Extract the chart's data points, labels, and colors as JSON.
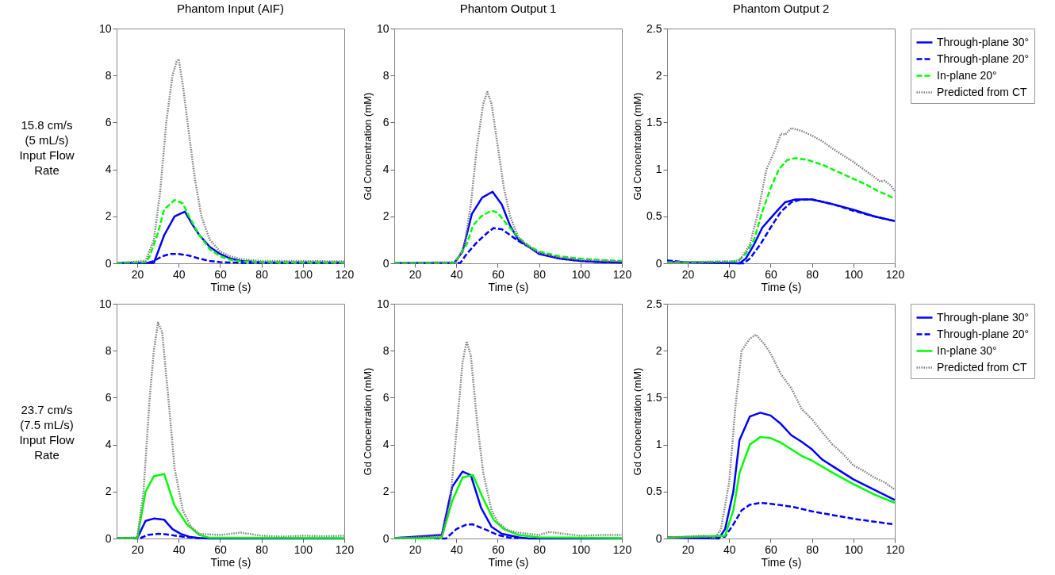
{
  "chart_data": [
    {
      "type": "line",
      "title": "Phantom Input (AIF)",
      "xlabel": "Time (s)",
      "annotations": [
        "15.8 cm/s (5 mL/s) Input Flow Rate"
      ],
      "xlim": [
        10,
        120
      ],
      "xticks": [
        20,
        40,
        60,
        80,
        100,
        120
      ],
      "ylim": [
        0,
        10
      ],
      "yticks": [
        0,
        2,
        4,
        6,
        8,
        10
      ],
      "series": [
        {
          "color": "#0000ff",
          "line_style": "solid",
          "x": [
            10,
            20,
            28,
            33,
            38,
            43,
            47,
            50,
            55,
            60,
            65,
            70,
            80,
            120
          ],
          "values": [
            0.02,
            0.02,
            0.02,
            1.2,
            2.0,
            2.2,
            1.6,
            1.2,
            0.7,
            0.4,
            0.2,
            0.1,
            0.04,
            0.03
          ]
        },
        {
          "color": "#0000ff",
          "line_style": "dashed",
          "x": [
            10,
            25,
            28,
            32,
            36,
            40,
            45,
            50,
            55,
            60,
            70,
            120
          ],
          "values": [
            0.02,
            0.02,
            0.1,
            0.3,
            0.4,
            0.4,
            0.33,
            0.2,
            0.1,
            0.05,
            0.02,
            0.02
          ]
        },
        {
          "color": "#00ff00",
          "line_style": "dashed",
          "x": [
            10,
            24,
            26,
            30,
            33,
            38,
            42,
            45,
            50,
            55,
            60,
            65,
            70,
            80,
            120
          ],
          "values": [
            0.02,
            0.05,
            0.3,
            1.3,
            2.3,
            2.7,
            2.55,
            2.0,
            1.2,
            0.6,
            0.3,
            0.15,
            0.08,
            0.05,
            0.03
          ]
        },
        {
          "color": "#808080",
          "line_style": "dotted",
          "x": [
            10,
            24,
            28,
            31,
            34,
            37,
            39,
            40,
            42,
            45,
            48,
            51,
            55,
            60,
            65,
            70,
            80,
            90,
            100,
            120
          ],
          "values": [
            0.02,
            0.1,
            1,
            3,
            6,
            8,
            8.6,
            8.7,
            7.6,
            5.5,
            3.5,
            2.0,
            1.0,
            0.5,
            0.3,
            0.18,
            0.1,
            0.1,
            0.1,
            0.08
          ]
        }
      ]
    },
    {
      "type": "line",
      "title": "Phantom Output 1",
      "xlabel": "Time (s)",
      "ylabel": "Gd Concentration (mM)",
      "xlim": [
        10,
        120
      ],
      "xticks": [
        20,
        40,
        60,
        80,
        100,
        120
      ],
      "ylim": [
        0,
        10
      ],
      "yticks": [
        0,
        2,
        4,
        6,
        8,
        10
      ],
      "series": [
        {
          "color": "#0000ff",
          "line_style": "solid",
          "x": [
            10,
            39,
            43,
            47.5,
            52.5,
            57.5,
            62,
            66,
            70,
            75,
            80,
            90,
            100,
            110,
            120
          ],
          "values": [
            0.02,
            0.02,
            0.5,
            2.1,
            2.8,
            3.05,
            2.5,
            1.6,
            1.0,
            0.7,
            0.4,
            0.2,
            0.1,
            0.05,
            0.03
          ]
        },
        {
          "color": "#0000ff",
          "line_style": "dashed",
          "x": [
            10,
            42,
            45,
            50,
            55,
            58,
            62,
            66,
            70,
            75,
            80,
            90,
            100,
            110,
            120
          ],
          "values": [
            0.02,
            0.02,
            0.4,
            0.9,
            1.3,
            1.5,
            1.45,
            1.2,
            0.95,
            0.7,
            0.45,
            0.2,
            0.1,
            0.05,
            0.03
          ]
        },
        {
          "color": "#00ff00",
          "line_style": "dashed",
          "x": [
            10,
            39,
            42,
            45,
            48,
            52,
            57,
            60,
            65,
            70,
            75,
            80,
            90,
            100,
            110,
            120
          ],
          "values": [
            0.02,
            0.02,
            0.4,
            0.8,
            1.6,
            2.0,
            2.25,
            2.15,
            1.6,
            1.1,
            0.75,
            0.5,
            0.3,
            0.2,
            0.14,
            0.1
          ]
        },
        {
          "color": "#808080",
          "line_style": "dotted",
          "x": [
            10,
            40,
            44,
            47,
            50,
            53,
            55,
            57,
            60,
            63,
            66,
            70,
            75,
            80,
            90,
            100,
            110,
            120
          ],
          "values": [
            0.02,
            0.05,
            0.8,
            2.5,
            5.0,
            6.8,
            7.3,
            6.8,
            5.0,
            3.2,
            2.0,
            1.1,
            0.7,
            0.45,
            0.25,
            0.15,
            0.12,
            0.08
          ]
        }
      ]
    },
    {
      "type": "line",
      "title": "Phantom Output 2",
      "xlabel": "Time (s)",
      "ylabel": "Gd Concentration (mM)",
      "legend": "right",
      "xlim": [
        10,
        120
      ],
      "xticks": [
        20,
        40,
        60,
        80,
        100,
        120
      ],
      "ylim": [
        0,
        2.5
      ],
      "yticks": [
        0,
        0.5,
        1,
        1.5,
        2,
        2.5
      ],
      "series": [
        {
          "name": "Through-plane 30°",
          "color": "#0000ff",
          "line_style": "solid",
          "x": [
            10,
            20,
            45,
            48,
            52,
            56,
            60,
            64,
            67,
            72,
            80,
            90,
            100,
            110,
            120
          ],
          "values": [
            0.02,
            0.01,
            0,
            0.05,
            0.2,
            0.38,
            0.48,
            0.58,
            0.65,
            0.68,
            0.68,
            0.63,
            0.57,
            0.5,
            0.45
          ]
        },
        {
          "name": "Through-plane 20°",
          "color": "#0000ff",
          "line_style": "dashed",
          "x": [
            10,
            20,
            47,
            50,
            55,
            60,
            65,
            70,
            75,
            80,
            90,
            100,
            110,
            120
          ],
          "values": [
            0.03,
            0.01,
            0,
            0.05,
            0.2,
            0.38,
            0.55,
            0.65,
            0.68,
            0.68,
            0.63,
            0.56,
            0.5,
            0.45
          ]
        },
        {
          "name": "In-plane 20°",
          "color": "#00ff00",
          "line_style": "dashed",
          "x": [
            10,
            44,
            48,
            52,
            56,
            60,
            64,
            68,
            72,
            78,
            85,
            95,
            105,
            112,
            120
          ],
          "values": [
            0.01,
            0.02,
            0.1,
            0.25,
            0.55,
            0.8,
            1.0,
            1.1,
            1.12,
            1.1,
            1.05,
            0.95,
            0.85,
            0.77,
            0.69
          ]
        },
        {
          "name": "Predicted from CT",
          "color": "#808080",
          "line_style": "dotted",
          "x": [
            10,
            40,
            45,
            50,
            54,
            58,
            62,
            65,
            67,
            70,
            75,
            80,
            85,
            90,
            95,
            100,
            105,
            110,
            113,
            115,
            118,
            120
          ],
          "values": [
            0.01,
            0.02,
            0.03,
            0.2,
            0.55,
            1.0,
            1.2,
            1.38,
            1.37,
            1.44,
            1.41,
            1.36,
            1.3,
            1.22,
            1.15,
            1.08,
            1.0,
            0.92,
            0.87,
            0.88,
            0.83,
            0.77
          ]
        }
      ]
    },
    {
      "type": "line",
      "xlabel": "Time (s)",
      "annotations": [
        "23.7 cm/s (7.5 mL/s) Input Flow Rate"
      ],
      "xlim": [
        10,
        120
      ],
      "xticks": [
        20,
        40,
        60,
        80,
        100,
        120
      ],
      "ylim": [
        0,
        10
      ],
      "yticks": [
        0,
        2,
        4,
        6,
        8,
        10
      ],
      "series": [
        {
          "color": "#0000ff",
          "line_style": "solid",
          "x": [
            10,
            20,
            24,
            28,
            33,
            37,
            41,
            45,
            50,
            55,
            120
          ],
          "values": [
            0.02,
            0.02,
            0.75,
            0.85,
            0.8,
            0.4,
            0.2,
            0.08,
            0.02,
            0,
            0
          ]
        },
        {
          "color": "#0000ff",
          "line_style": "dashed",
          "x": [
            10,
            21,
            25,
            30,
            34,
            40,
            45,
            50
          ],
          "values": [
            0.02,
            0,
            0.15,
            0.2,
            0.18,
            0.1,
            0.05,
            0.02
          ]
        },
        {
          "color": "#00ff00",
          "line_style": "solid",
          "x": [
            10,
            20,
            24,
            28,
            33,
            38,
            44,
            50,
            55,
            120
          ],
          "values": [
            0.02,
            0.02,
            2.0,
            2.65,
            2.75,
            1.4,
            0.6,
            0.15,
            0.03,
            0.02
          ]
        },
        {
          "color": "#808080",
          "line_style": "dotted",
          "x": [
            10,
            20,
            23,
            26,
            28,
            30,
            32,
            35,
            38,
            42,
            46,
            50,
            60,
            70,
            80,
            90,
            100,
            110,
            120
          ],
          "values": [
            0.02,
            0.05,
            2.0,
            6.0,
            8.0,
            9.2,
            8.8,
            6,
            3.0,
            1.2,
            0.5,
            0.2,
            0.15,
            0.25,
            0.12,
            0.08,
            0.12,
            0.1,
            0.12
          ]
        }
      ]
    },
    {
      "type": "line",
      "xlabel": "Time (s)",
      "ylabel": "Gd Concentration (mM)",
      "xlim": [
        10,
        120
      ],
      "xticks": [
        20,
        40,
        60,
        80,
        100,
        120
      ],
      "ylim": [
        0,
        10
      ],
      "yticks": [
        0,
        2,
        4,
        6,
        8,
        10
      ],
      "series": [
        {
          "color": "#0000ff",
          "line_style": "solid",
          "x": [
            10,
            33,
            38,
            43,
            47,
            52,
            57,
            62,
            70,
            75,
            120
          ],
          "values": [
            0.02,
            0.15,
            2.2,
            2.85,
            2.7,
            1.3,
            0.5,
            0.2,
            0.05,
            0,
            0
          ]
        },
        {
          "color": "#0000ff",
          "line_style": "dashed",
          "x": [
            10,
            35,
            40,
            45,
            48,
            55,
            60,
            65,
            70
          ],
          "values": [
            0.02,
            0,
            0.4,
            0.6,
            0.6,
            0.35,
            0.15,
            0.05,
            0.02
          ]
        },
        {
          "color": "#00ff00",
          "line_style": "solid",
          "x": [
            10,
            25,
            33,
            38,
            43,
            48,
            53,
            58,
            63,
            70,
            80,
            120
          ],
          "values": [
            0.02,
            0,
            0.05,
            1.6,
            2.6,
            2.7,
            1.7,
            0.8,
            0.4,
            0.15,
            0.05,
            0.02
          ]
        },
        {
          "color": "#808080",
          "line_style": "dotted",
          "x": [
            10,
            33,
            37,
            40,
            43,
            45,
            47,
            50,
            53,
            57,
            60,
            65,
            70,
            80,
            85,
            90,
            100,
            110,
            120
          ],
          "values": [
            0.02,
            0.1,
            1.5,
            4.5,
            7.5,
            8.4,
            7.8,
            5.0,
            2.8,
            1.2,
            0.7,
            0.35,
            0.25,
            0.15,
            0.28,
            0.22,
            0.12,
            0.15,
            0.15
          ]
        }
      ]
    },
    {
      "type": "line",
      "xlabel": "Time (s)",
      "ylabel": "Gd Concentration (mM)",
      "legend": "right",
      "xlim": [
        10,
        120
      ],
      "xticks": [
        20,
        40,
        60,
        80,
        100,
        120
      ],
      "ylim": [
        0,
        2.5
      ],
      "yticks": [
        0,
        0.5,
        1,
        1.5,
        2,
        2.5
      ],
      "series": [
        {
          "name": "Through-plane 30°",
          "color": "#0000ff",
          "line_style": "solid",
          "x": [
            10,
            35,
            38,
            42,
            45,
            50,
            55,
            60,
            65,
            70,
            75,
            80,
            85,
            90,
            100,
            110,
            120
          ],
          "values": [
            0.01,
            0,
            0.1,
            0.5,
            1.05,
            1.3,
            1.34,
            1.31,
            1.22,
            1.1,
            1.03,
            0.95,
            0.84,
            0.77,
            0.63,
            0.52,
            0.41
          ]
        },
        {
          "name": "Through-plane 20°",
          "color": "#0000ff",
          "line_style": "dashed",
          "x": [
            10,
            38,
            42,
            46,
            50,
            55,
            60,
            70,
            80,
            90,
            100,
            110,
            120
          ],
          "values": [
            0.01,
            0.02,
            0.15,
            0.3,
            0.36,
            0.38,
            0.37,
            0.34,
            0.29,
            0.25,
            0.21,
            0.18,
            0.15
          ]
        },
        {
          "name": "In-plane 30°",
          "color": "#00ff00",
          "line_style": "solid",
          "x": [
            10,
            38,
            42,
            45,
            50,
            55,
            60,
            65,
            70,
            75,
            80,
            90,
            100,
            110,
            120
          ],
          "values": [
            0.01,
            0.03,
            0.3,
            0.7,
            1.0,
            1.08,
            1.07,
            1.02,
            0.95,
            0.88,
            0.83,
            0.7,
            0.58,
            0.47,
            0.38
          ]
        },
        {
          "name": "Predicted from CT",
          "color": "#808080",
          "line_style": "dotted",
          "x": [
            10,
            28,
            33,
            36,
            40,
            43,
            46,
            50,
            53,
            57,
            60,
            65,
            70,
            75,
            80,
            85,
            90,
            95,
            100,
            105,
            110,
            115,
            120
          ],
          "values": [
            0.01,
            0.03,
            0,
            0.1,
            0.6,
            1.4,
            2.0,
            2.13,
            2.17,
            2.07,
            1.97,
            1.75,
            1.6,
            1.38,
            1.27,
            1.13,
            1.0,
            0.9,
            0.78,
            0.72,
            0.65,
            0.6,
            0.52
          ]
        }
      ]
    }
  ]
}
